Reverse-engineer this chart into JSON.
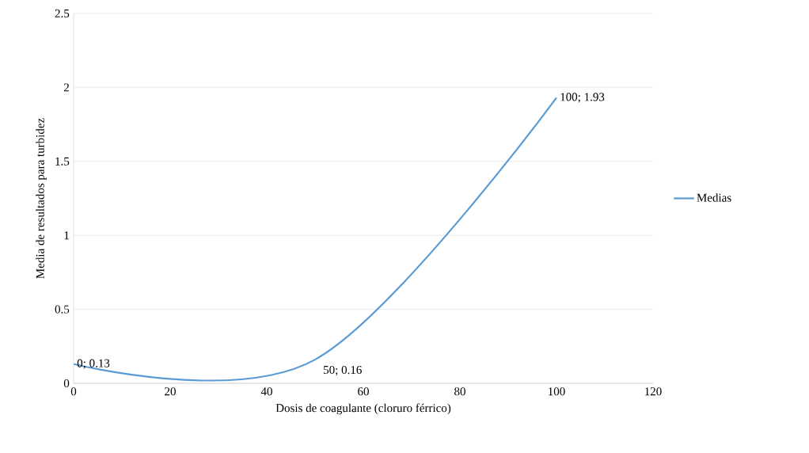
{
  "chart_data": {
    "type": "line",
    "xlabel": "Dosis de coagulante (cloruro férrico)",
    "ylabel": "Media de resultados para turbidez",
    "x": [
      0,
      50,
      100
    ],
    "series": [
      {
        "name": "Medias",
        "color": "#5b9bd5",
        "values": [
          0.13,
          0.16,
          1.93
        ],
        "value_labels": [
          "0; 0.13",
          "50; 0.16",
          "100; 1.93"
        ]
      }
    ],
    "xlim": [
      0,
      120
    ],
    "xticks": [
      0,
      20,
      40,
      60,
      80,
      100,
      120
    ],
    "ylim": [
      0,
      2.5
    ],
    "yticks": [
      0,
      0.5,
      1,
      1.5,
      2,
      2.5
    ],
    "grid": "y",
    "legend": "right",
    "marker": "none",
    "line_style": "solid"
  }
}
